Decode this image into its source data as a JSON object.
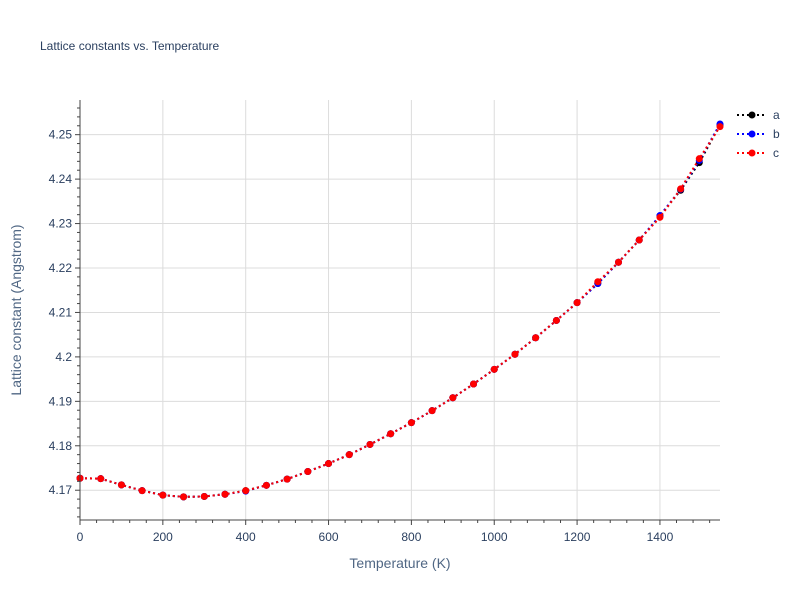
{
  "chart_data": {
    "type": "line",
    "title": "Lattice constants vs. Temperature",
    "xlabel": "Temperature (K)",
    "ylabel": "Lattice constant (Angstrom)",
    "xlim": [
      0,
      1545
    ],
    "ylim": [
      4.1633,
      4.2578
    ],
    "xticks": [
      0,
      200,
      400,
      600,
      800,
      1000,
      1200,
      1400
    ],
    "yticks": [
      4.17,
      4.18,
      4.19,
      4.2,
      4.21,
      4.22,
      4.23,
      4.24,
      4.25
    ],
    "ytick_labels": [
      "4.17",
      "4.18",
      "4.19",
      "4.2",
      "4.21",
      "4.22",
      "4.23",
      "4.24",
      "4.25"
    ],
    "grid": true,
    "legend_position": "top-right",
    "x": [
      0,
      50,
      100,
      150,
      200,
      250,
      300,
      350,
      400,
      450,
      500,
      550,
      600,
      650,
      700,
      750,
      800,
      850,
      900,
      950,
      1000,
      1050,
      1100,
      1150,
      1200,
      1250,
      1300,
      1350,
      1400,
      1450,
      1495,
      1545
    ],
    "series": [
      {
        "name": "a",
        "color": "#000000",
        "values": [
          4.1727,
          4.1726,
          4.1712,
          4.1699,
          4.1689,
          4.1685,
          4.1686,
          4.1691,
          4.1699,
          4.1711,
          4.1725,
          4.1742,
          4.176,
          4.178,
          4.1803,
          4.1827,
          4.1852,
          4.1879,
          4.1908,
          4.1939,
          4.1972,
          4.2006,
          4.2043,
          4.2082,
          4.2122,
          4.2165,
          4.2213,
          4.2263,
          4.2317,
          4.2375,
          4.2437,
          4.2522
        ]
      },
      {
        "name": "b",
        "color": "#0000ff",
        "values": [
          4.1727,
          4.1726,
          4.1712,
          4.1699,
          4.1689,
          4.1685,
          4.1686,
          4.1691,
          4.1698,
          4.1711,
          4.1725,
          4.1742,
          4.176,
          4.178,
          4.1803,
          4.1827,
          4.1852,
          4.1879,
          4.1908,
          4.1939,
          4.1972,
          4.2006,
          4.2043,
          4.2082,
          4.2122,
          4.2165,
          4.2213,
          4.2263,
          4.2318,
          4.2377,
          4.2442,
          4.2524
        ]
      },
      {
        "name": "c",
        "color": "#ff0000",
        "values": [
          4.1727,
          4.1726,
          4.1712,
          4.1699,
          4.1689,
          4.1685,
          4.1686,
          4.1691,
          4.1699,
          4.1711,
          4.1725,
          4.1742,
          4.176,
          4.178,
          4.1803,
          4.1827,
          4.1852,
          4.1879,
          4.1908,
          4.1939,
          4.1972,
          4.2006,
          4.2043,
          4.2082,
          4.2122,
          4.2169,
          4.2213,
          4.2263,
          4.2314,
          4.2378,
          4.2446,
          4.2518
        ]
      }
    ]
  }
}
